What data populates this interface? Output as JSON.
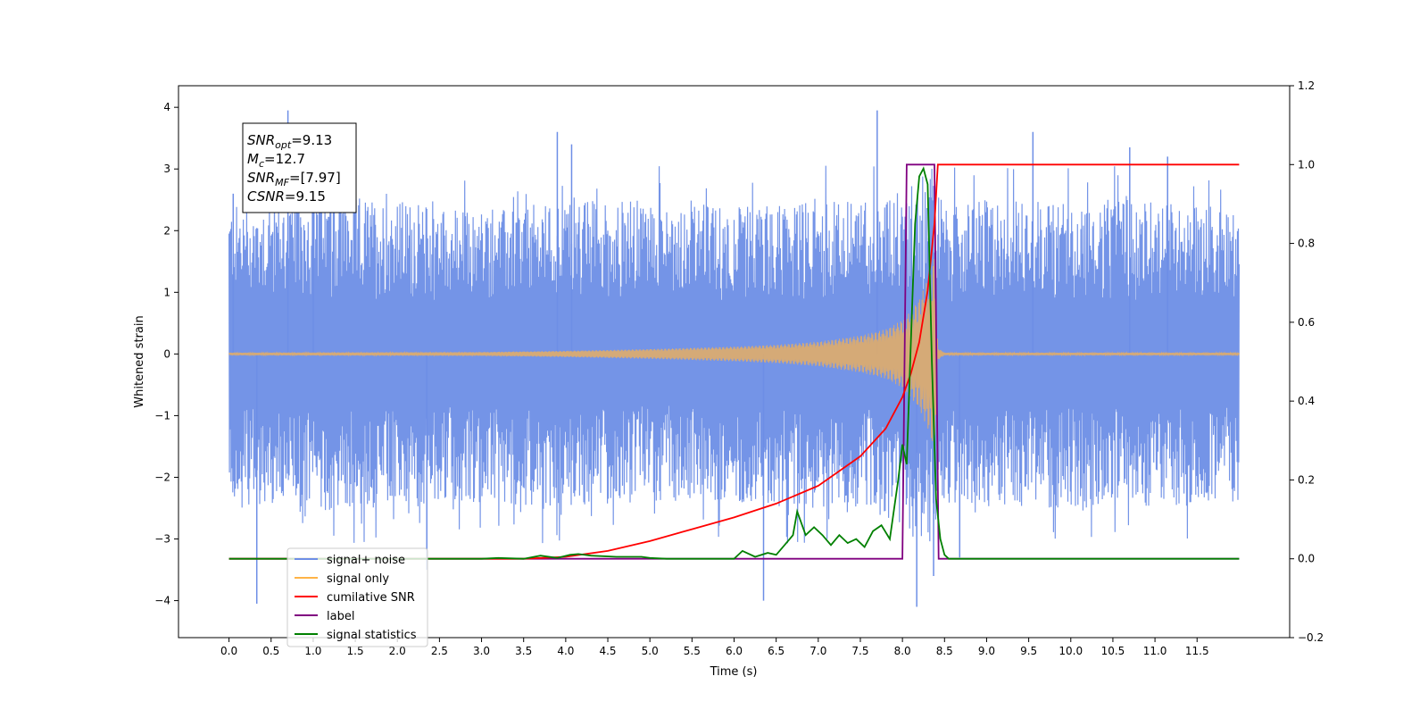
{
  "chart_data": {
    "type": "line",
    "title": "",
    "xlabel": "Time (s)",
    "ylabel": "Whitened strain",
    "ylabel_right": "",
    "xlim": [
      -0.6,
      12.6
    ],
    "ylim": [
      -4.6,
      4.35
    ],
    "ylim_right": [
      -0.2,
      1.2
    ],
    "x_ticks": [
      0,
      0.5,
      1,
      1.5,
      2,
      2.5,
      3,
      3.5,
      4,
      4.5,
      5,
      5.5,
      6,
      6.5,
      7,
      7.5,
      8,
      8.5,
      9,
      9.5,
      10,
      10.5,
      11,
      11.5
    ],
    "x_tick_labels": [
      "0.0",
      "0.5",
      "1.0",
      "1.5",
      "2.0",
      "2.5",
      "3.0",
      "3.5",
      "4.0",
      "4.5",
      "5.0",
      "5.5",
      "6.0",
      "6.5",
      "7.0",
      "7.5",
      "8.0",
      "8.5",
      "9.0",
      "9.5",
      "10.0",
      "10.5",
      "11.0",
      "11.5"
    ],
    "y_ticks": [
      -4,
      -3,
      -2,
      -1,
      0,
      1,
      2,
      3,
      4
    ],
    "y_tick_labels": [
      "−4",
      "−3",
      "−2",
      "−1",
      "0",
      "1",
      "2",
      "3",
      "4"
    ],
    "y_right_ticks": [
      -0.2,
      0,
      0.2,
      0.4,
      0.6,
      0.8,
      1.0,
      1.2
    ],
    "y_right_tick_labels": [
      "−0.2",
      "0.0",
      "0.2",
      "0.4",
      "0.6",
      "0.8",
      "1.0",
      "1.2"
    ],
    "grid": false,
    "legend_position": "lower-left",
    "annotation_box": {
      "position": "top-left",
      "lines": [
        {
          "sym": "SNR",
          "sub": "opt",
          "val": "=9.13"
        },
        {
          "sym": "M",
          "sub": "c",
          "val": "=12.7"
        },
        {
          "sym": "SNR",
          "sub": "MF",
          "val": "=[7.97]"
        },
        {
          "sym": "CSNR",
          "sub": "",
          "val": "=9.15"
        }
      ]
    },
    "series": [
      {
        "name": "signal+ noise",
        "axis": "left",
        "color": "#6d8ee6",
        "note": "Noisy whitened strain, roughly symmetric band about 0 with peaks up to about ±4",
        "x_range": [
          0.0,
          12.0
        ],
        "envelope_x": [
          0.0,
          1.0,
          2.0,
          3.0,
          4.0,
          5.0,
          6.0,
          7.0,
          7.5,
          8.0,
          8.3,
          8.4,
          8.5,
          9.0,
          10.0,
          11.0,
          12.0
        ],
        "envelope_upper": [
          2.4,
          2.6,
          2.5,
          2.3,
          2.5,
          2.5,
          2.4,
          2.5,
          2.5,
          2.7,
          3.0,
          2.8,
          2.4,
          2.5,
          2.5,
          2.5,
          2.4
        ],
        "envelope_lower": [
          -2.4,
          -2.6,
          -2.5,
          -2.4,
          -2.5,
          -2.4,
          -2.4,
          -2.5,
          -2.5,
          -2.8,
          -3.2,
          -2.8,
          -2.4,
          -2.5,
          -2.5,
          -2.5,
          -2.4
        ],
        "spikes": [
          {
            "x": 0.33,
            "y": -4.05
          },
          {
            "x": 0.7,
            "y": 3.95
          },
          {
            "x": 1.0,
            "y": 3.3
          },
          {
            "x": 2.35,
            "y": -3.5
          },
          {
            "x": 3.9,
            "y": 3.6
          },
          {
            "x": 4.07,
            "y": 3.4
          },
          {
            "x": 6.35,
            "y": -4.0
          },
          {
            "x": 7.7,
            "y": 3.95
          },
          {
            "x": 8.17,
            "y": -4.1
          },
          {
            "x": 8.37,
            "y": -3.6
          },
          {
            "x": 9.55,
            "y": 3.6
          },
          {
            "x": 10.7,
            "y": 3.35
          },
          {
            "x": 11.15,
            "y": 3.2
          },
          {
            "x": 0.05,
            "y": 2.6
          },
          {
            "x": 8.68,
            "y": -3.3
          }
        ]
      },
      {
        "name": "signal only",
        "axis": "left",
        "color": "#ffb347",
        "note": "Chirp: near-zero amplitude, growing to about ±1.6 at merger near 8.4 s",
        "x": [
          0.0,
          3.0,
          4.0,
          5.0,
          6.0,
          6.5,
          7.0,
          7.5,
          7.8,
          8.0,
          8.1,
          8.2,
          8.3,
          8.38,
          8.42,
          8.5,
          12.0
        ],
        "amplitude": [
          0.02,
          0.03,
          0.05,
          0.08,
          0.12,
          0.15,
          0.2,
          0.3,
          0.4,
          0.55,
          0.7,
          0.9,
          1.2,
          1.6,
          0.1,
          0.02,
          0.02
        ]
      },
      {
        "name": "cumilative SNR",
        "axis": "right",
        "color": "#ff0000",
        "x": [
          0.0,
          3.5,
          4.0,
          4.5,
          5.0,
          5.5,
          6.0,
          6.5,
          7.0,
          7.5,
          7.8,
          8.0,
          8.1,
          8.2,
          8.3,
          8.38,
          8.42,
          12.0
        ],
        "values": [
          0.0,
          0.0,
          0.005,
          0.02,
          0.045,
          0.075,
          0.105,
          0.14,
          0.185,
          0.26,
          0.33,
          0.41,
          0.47,
          0.55,
          0.68,
          0.85,
          1.0,
          1.0
        ]
      },
      {
        "name": "label",
        "axis": "right",
        "color": "#800080",
        "x": [
          0.0,
          8.0,
          8.05,
          8.38,
          8.43,
          12.0
        ],
        "values": [
          0.0,
          0.0,
          1.0,
          1.0,
          0.0,
          0.0
        ]
      },
      {
        "name": "signal statistics",
        "axis": "right",
        "color": "#008000",
        "x": [
          0.0,
          3.0,
          3.2,
          3.5,
          3.7,
          3.9,
          4.05,
          4.15,
          4.3,
          4.6,
          4.9,
          5.0,
          5.2,
          6.0,
          6.1,
          6.25,
          6.4,
          6.5,
          6.6,
          6.7,
          6.75,
          6.85,
          6.95,
          7.05,
          7.15,
          7.25,
          7.35,
          7.45,
          7.55,
          7.65,
          7.75,
          7.85,
          7.95,
          8.0,
          8.05,
          8.1,
          8.15,
          8.2,
          8.25,
          8.3,
          8.35,
          8.4,
          8.45,
          8.5,
          8.55,
          8.65,
          12.0
        ],
        "values": [
          0.0,
          0.0,
          0.002,
          0.0,
          0.008,
          0.002,
          0.01,
          0.012,
          0.008,
          0.005,
          0.005,
          0.002,
          0.0,
          0.0,
          0.02,
          0.005,
          0.015,
          0.01,
          0.035,
          0.06,
          0.12,
          0.06,
          0.08,
          0.06,
          0.035,
          0.06,
          0.04,
          0.05,
          0.03,
          0.07,
          0.085,
          0.05,
          0.2,
          0.29,
          0.24,
          0.55,
          0.85,
          0.97,
          0.99,
          0.95,
          0.5,
          0.15,
          0.05,
          0.01,
          0.0,
          0.0,
          0.0
        ]
      }
    ],
    "legend": [
      {
        "label": "signal+ noise",
        "color": "#6d8ee6"
      },
      {
        "label": "signal only",
        "color": "#ffb347"
      },
      {
        "label": "cumilative SNR",
        "color": "#ff0000"
      },
      {
        "label": "label",
        "color": "#800080"
      },
      {
        "label": "signal statistics",
        "color": "#008000"
      }
    ]
  }
}
